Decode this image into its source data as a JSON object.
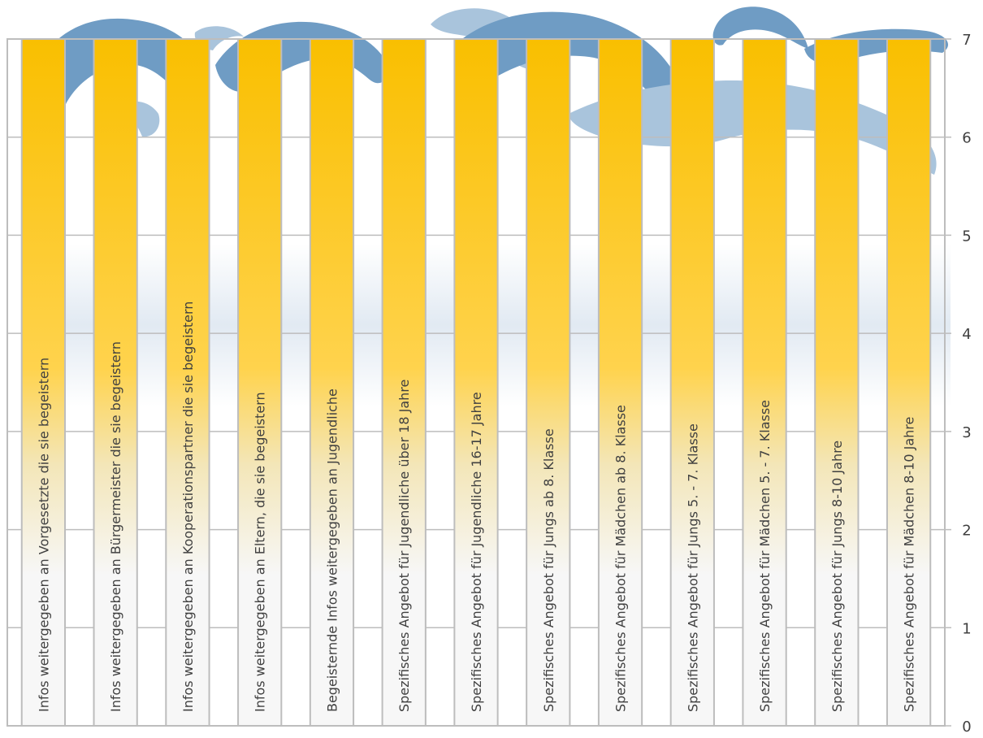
{
  "chart_data": {
    "type": "bar",
    "orientation": "vertical",
    "title": "",
    "xlabel": "",
    "ylabel": "",
    "y_axis_side": "right",
    "ylim": [
      0,
      7
    ],
    "yticks": [
      0,
      1,
      2,
      3,
      4,
      5,
      6,
      7
    ],
    "grid": true,
    "legend": "none",
    "category_labels_inside_bars": true,
    "bar_color_top": "#F9BF00",
    "bar_color_mid": "#FFD34D",
    "bar_color_bottom": "#F7F7F7",
    "bar_border_color": "#BDBDBD",
    "grid_color": "#BDBDBD",
    "decoration": "blue wave background",
    "wave_dark_color": "#6F9CC4",
    "wave_light_color": "#A9C4DC",
    "categories": [
      "Infos weitergegeben an Vorgesetzte die sie begeistern",
      "Infos weitergegeben an Bürgermeister die sie begeistern",
      "Infos weitergegeben an Kooperationspartner die sie begeistern",
      "Infos weitergegeben an Eltern, die sie begeistern",
      "Begeisternde Infos weitergegeben an Jugendliche",
      "Spezifisches Angebot für Jugendliche über 18 Jahre",
      "Spezifisches Angebot für Jugendliche 16-17 Jahre",
      "Spezifisches Angebot für Jungs ab 8. Klasse",
      "Spezifisches Angebot für Mädchen ab 8. Klasse",
      "Spezifisches Angebot für Jungs 5. - 7. Klasse",
      "Spezifisches Angebot für Mädchen 5. - 7. Klasse",
      "Spezifisches Angebot für Jungs 8-10 Jahre",
      "Spezifisches Angebot für Mädchen 8-10 Jahre"
    ],
    "values": [
      7,
      7,
      7,
      7,
      7,
      7,
      7,
      7,
      7,
      7,
      7,
      7,
      7
    ]
  }
}
